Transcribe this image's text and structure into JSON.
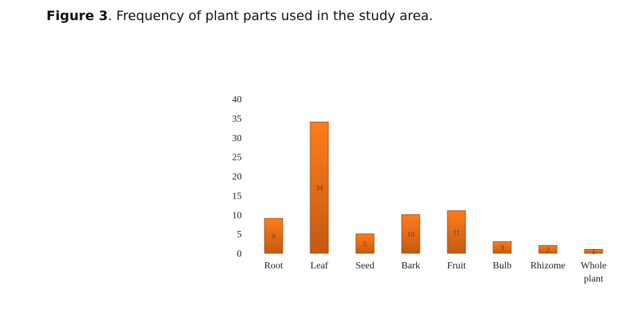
{
  "figure": {
    "label": "Figure 3",
    "caption": ". Frequency of plant parts used in the study area."
  },
  "chart_data": {
    "type": "bar",
    "categories": [
      "Root",
      "Leaf",
      "Seed",
      "Bark",
      "Fruit",
      "Bulb",
      "Rhizome",
      "Whole plant"
    ],
    "category_lines": [
      [
        "Root"
      ],
      [
        "Leaf"
      ],
      [
        "Seed"
      ],
      [
        "Bark"
      ],
      [
        "Fruit"
      ],
      [
        "Bulb"
      ],
      [
        "Rhizome"
      ],
      [
        "Whole",
        "plant"
      ]
    ],
    "values": [
      9,
      34,
      5,
      10,
      11,
      3,
      2,
      1
    ],
    "data_labels": [
      "9",
      "34",
      "5",
      "10",
      "11",
      "3",
      "2",
      "1"
    ],
    "ylim": [
      0,
      40
    ],
    "yticks": [
      0,
      5,
      10,
      15,
      20,
      25,
      30,
      35,
      40
    ],
    "grid": false,
    "legend": "none",
    "colors": {
      "bar_light": "#ff7d1a",
      "bar_dark": "#c45a12",
      "bar_border": "#a64a0c"
    }
  }
}
